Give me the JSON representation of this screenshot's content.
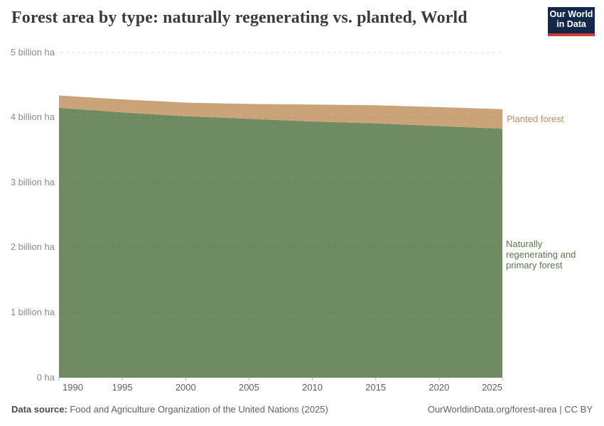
{
  "header": {
    "title": "Forest area by type: naturally regenerating vs. planted, World",
    "logo": {
      "line1": "Our World",
      "line2": "in Data"
    }
  },
  "chart_data": {
    "type": "area",
    "stacked": true,
    "title": "Forest area by type: naturally regenerating vs. planted, World",
    "x": [
      1990,
      1995,
      2000,
      2005,
      2010,
      2015,
      2020,
      2025
    ],
    "series": [
      {
        "name": "Naturally regenerating and primary forest",
        "unit": "billion ha",
        "color": "#6e8b62",
        "label_color": "#5a7649",
        "values": [
          4.15,
          4.08,
          4.02,
          3.98,
          3.94,
          3.91,
          3.87,
          3.83
        ]
      },
      {
        "name": "Planted forest",
        "unit": "billion ha",
        "color": "#caa379",
        "label_color": "#b98f5c",
        "values": [
          0.19,
          0.2,
          0.21,
          0.23,
          0.26,
          0.28,
          0.29,
          0.3
        ]
      }
    ],
    "xlim": [
      1990,
      2025
    ],
    "ylim": [
      0,
      5
    ],
    "x_ticks": [
      1990,
      1995,
      2000,
      2005,
      2010,
      2015,
      2020,
      2025
    ],
    "y_ticks": [
      {
        "value": 0,
        "label": "0 ha"
      },
      {
        "value": 1,
        "label": "1 billion ha"
      },
      {
        "value": 2,
        "label": "2 billion ha"
      },
      {
        "value": 3,
        "label": "3 billion ha"
      },
      {
        "value": 4,
        "label": "4 billion ha"
      },
      {
        "value": 5,
        "label": "5 billion ha"
      }
    ],
    "grid": "horizontal dashed",
    "legend_position": "right-of-area"
  },
  "footer": {
    "source_label": "Data source:",
    "source_text": " Food and Agriculture Organization of the United Nations (2025)",
    "link": "OurWorldinData.org/forest-area | CC BY"
  }
}
